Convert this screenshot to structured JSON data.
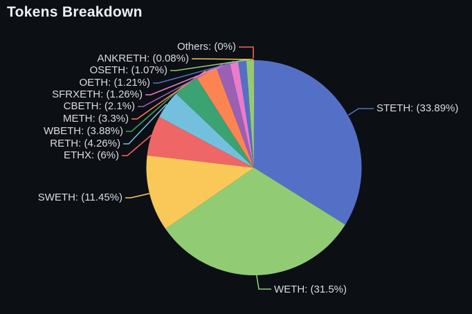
{
  "title": "Tokens Breakdown",
  "theme": {
    "background": "#0c0f14",
    "title_color": "#eef1f4",
    "label_color": "#d9dce1"
  },
  "chart_data": {
    "type": "pie",
    "title": "Tokens Breakdown",
    "legend_position": "none",
    "start_angle_deg": 0,
    "direction": "clockwise",
    "label_format": "NAME: (PERCENT%)",
    "items": [
      {
        "name": "STETH",
        "percent": 33.89,
        "label": "STETH: (33.89%)",
        "color": "#5470c6"
      },
      {
        "name": "WETH",
        "percent": 31.5,
        "label": "WETH: (31.5%)",
        "color": "#91cc75"
      },
      {
        "name": "SWETH",
        "percent": 11.45,
        "label": "SWETH: (11.45%)",
        "color": "#fac858"
      },
      {
        "name": "ETHX",
        "percent": 6,
        "label": "ETHX: (6%)",
        "color": "#ee6666"
      },
      {
        "name": "RETH",
        "percent": 4.26,
        "label": "RETH: (4.26%)",
        "color": "#73c0de"
      },
      {
        "name": "WBETH",
        "percent": 3.88,
        "label": "WBETH: (3.88%)",
        "color": "#3ba272"
      },
      {
        "name": "METH",
        "percent": 3.3,
        "label": "METH: (3.3%)",
        "color": "#fc8452"
      },
      {
        "name": "CBETH",
        "percent": 2.1,
        "label": "CBETH: (2.1%)",
        "color": "#9a60b4"
      },
      {
        "name": "SFRXETH",
        "percent": 1.26,
        "label": "SFRXETH: (1.26%)",
        "color": "#ea7ccc"
      },
      {
        "name": "OETH",
        "percent": 1.21,
        "label": "OETH: (1.21%)",
        "color": "#5470c6"
      },
      {
        "name": "OSETH",
        "percent": 1.07,
        "label": "OSETH: (1.07%)",
        "color": "#91cc75"
      },
      {
        "name": "ANKRETH",
        "percent": 0.08,
        "label": "ANKRETH: (0.08%)",
        "color": "#fac858"
      },
      {
        "name": "Others",
        "percent": 0,
        "label": "Others: (0%)",
        "color": "#ee6666"
      }
    ]
  }
}
